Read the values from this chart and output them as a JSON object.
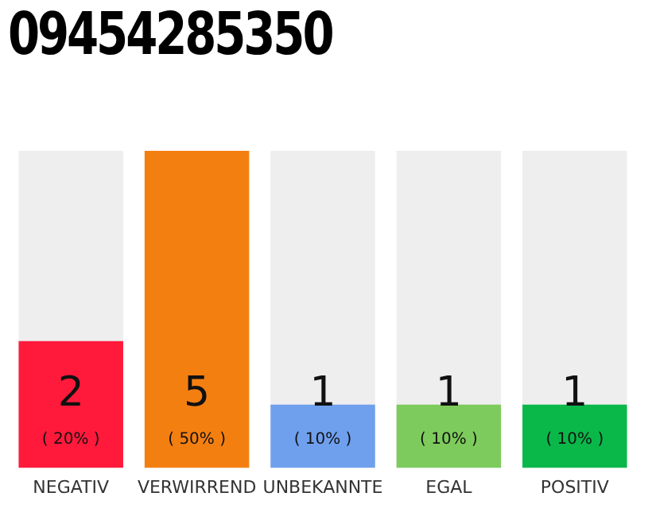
{
  "chart_data": {
    "type": "bar",
    "title": "09454285350",
    "categories": [
      "NEGATIV",
      "VERWIRREND",
      "UNBEKANNTE",
      "EGAL",
      "POSITIV"
    ],
    "values": [
      2,
      5,
      1,
      1,
      1
    ],
    "colors": [
      "#ff1a3c",
      "#f47f11",
      "#6fa0ee",
      "#7dcb5c",
      "#0ab84a"
    ],
    "data_labels": true,
    "annotations": [
      "( 20% )",
      "( 50% )",
      "( 10% )",
      "( 10% )",
      "( 10% )"
    ],
    "grid": false,
    "legend": false
  }
}
